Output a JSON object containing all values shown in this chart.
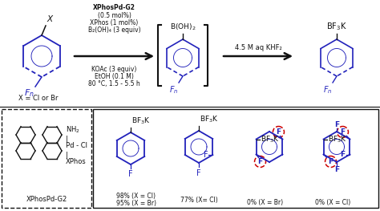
{
  "bg_color": "#ffffff",
  "reaction_conditions": [
    "XPhosPd-G2",
    "(0.5 mol%)",
    "XPhos (1 mol%)",
    "B₂(OH)₄ (3 equiv)",
    "KOAc (3 equiv)",
    "EtOH (0.1 M)",
    "80 °C, 1.5 - 5.5 h"
  ],
  "arrow2_label": "4.5 M aq KHF₂",
  "blue_color": "#2222bb",
  "red_color": "#cc0000",
  "black_color": "#111111",
  "yield1a": "98% (X = Cl)",
  "yield1b": "95% (X = Br)",
  "yield2": "77% (X= Cl)",
  "yield3": "0% (X = Br)",
  "yield4": "0% (X = Cl)"
}
